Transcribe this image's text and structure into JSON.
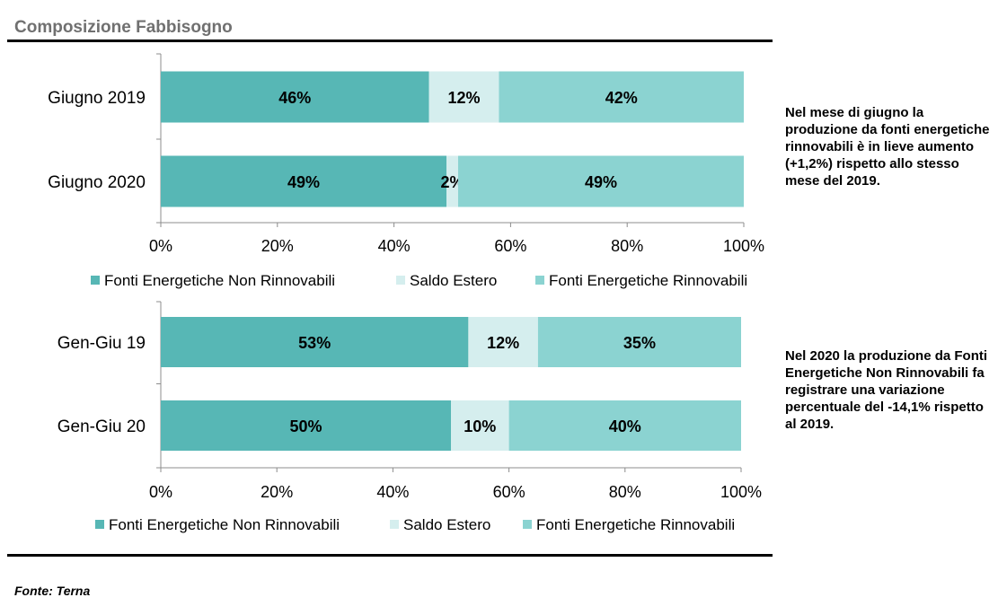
{
  "title": "Composizione Fabbisogno",
  "source": "Fonte: Terna",
  "notes": [
    "Nel mese di giugno la produzione da fonti energetiche rinnovabili è in lieve aumento (+1,2%) rispetto allo stesso mese del 2019.",
    "Nel 2020 la produzione da Fonti Energetiche Non Rinnovabili fa registrare una variazione percentuale del -14,1% rispetto al  2019."
  ],
  "colors": {
    "non_rinnovabili": "#57b7b5",
    "saldo_estero": "#d5eeee",
    "rinnovabili": "#8bd3d1"
  },
  "chart_data": [
    {
      "type": "bar",
      "orientation": "horizontal",
      "stacked": true,
      "categories": [
        "Giugno 2019",
        "Giugno 2020"
      ],
      "series": [
        {
          "name": "Fonti Energetiche Non Rinnovabili",
          "values": [
            46,
            49
          ],
          "labels": [
            "46%",
            "49%"
          ]
        },
        {
          "name": "Saldo Estero",
          "values": [
            12,
            2
          ],
          "labels": [
            "12%",
            "2%"
          ]
        },
        {
          "name": "Fonti Energetiche Rinnovabili",
          "values": [
            42,
            49
          ],
          "labels": [
            "42%",
            "49%"
          ]
        }
      ],
      "xlim": [
        0,
        100
      ],
      "xticks": [
        "0%",
        "20%",
        "40%",
        "60%",
        "80%",
        "100%"
      ],
      "legend": "bottom",
      "grid": false
    },
    {
      "type": "bar",
      "orientation": "horizontal",
      "stacked": true,
      "categories": [
        "Gen-Giu 19",
        "Gen-Giu 20"
      ],
      "series": [
        {
          "name": "Fonti Energetiche Non Rinnovabili",
          "values": [
            53,
            50
          ],
          "labels": [
            "53%",
            "50%"
          ]
        },
        {
          "name": "Saldo Estero",
          "values": [
            12,
            10
          ],
          "labels": [
            "12%",
            "10%"
          ]
        },
        {
          "name": "Fonti Energetiche Rinnovabili",
          "values": [
            35,
            40
          ],
          "labels": [
            "35%",
            "40%"
          ]
        }
      ],
      "xlim": [
        0,
        100
      ],
      "xticks": [
        "0%",
        "20%",
        "40%",
        "60%",
        "80%",
        "100%"
      ],
      "legend": "bottom",
      "grid": false
    }
  ]
}
